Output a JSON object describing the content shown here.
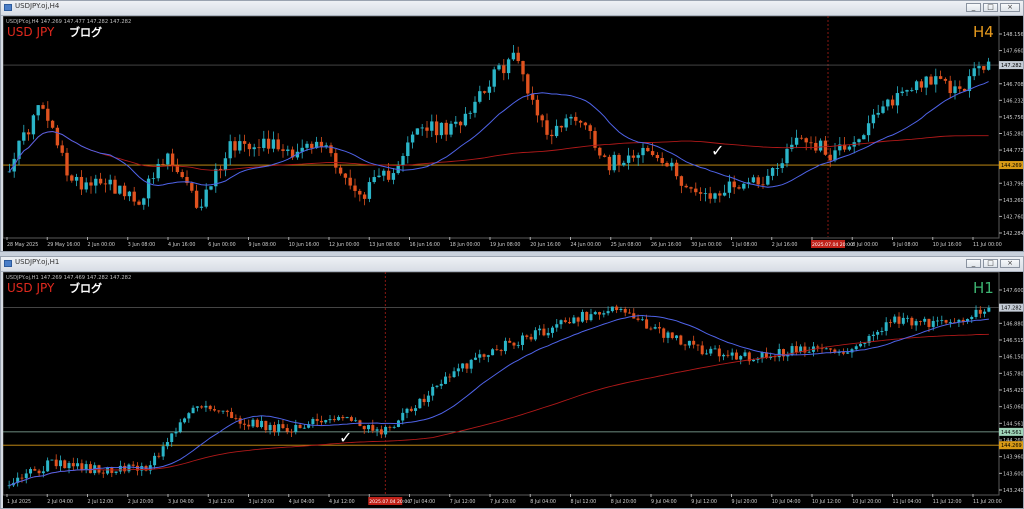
{
  "windows": [
    {
      "id": "h4",
      "title": "USDJPY.oj,H4",
      "info": "USDJPY.oj,H4  147.269 147.477 147.282 147.282",
      "brand_main": "USD JPY",
      "brand_sub": "ブログ",
      "tf": "H4",
      "tf_color": "#e69a1e",
      "price_labels": [
        "148.156",
        "147.660",
        "147.282",
        "146.708",
        "146.232",
        "145.756",
        "145.280",
        "144.772",
        "144.269",
        "143.796",
        "143.260",
        "142.760",
        "142.284"
      ],
      "current_price": "147.282",
      "hline_price": "144.269",
      "time_labels": [
        "28 May 2025",
        "29 May 16:00",
        "2 Jun 00:00",
        "3 Jun 08:00",
        "4 Jun 16:00",
        "6 Jun 00:00",
        "9 Jun 08:00",
        "10 Jun 16:00",
        "12 Jun 00:00",
        "13 Jun 08:00",
        "16 Jun 16:00",
        "18 Jun 00:00",
        "19 Jun 08:00",
        "20 Jun 16:00",
        "24 Jun 00:00",
        "25 Jun 08:00",
        "26 Jun 16:00",
        "30 Jun 00:00",
        "1 Jul 08:00",
        "2 Jul 16:00",
        "2025.07.04 20:00",
        "8 Jul 00:00",
        "9 Jul 08:00",
        "10 Jul 16:00",
        "11 Jul 00:00"
      ],
      "time_highlight": "2025.07.04 20:00",
      "checkmark": "✓"
    },
    {
      "id": "h1",
      "title": "USDJPY.oj,H1",
      "info": "USDJPY.oj,H1  147.269 147.469 147.282 147.282",
      "brand_main": "USD JPY",
      "brand_sub": "ブログ",
      "tf": "H1",
      "tf_color": "#3cb371",
      "price_labels": [
        "147.600",
        "147.282",
        "146.880",
        "146.515",
        "146.150",
        "145.780",
        "145.420",
        "145.060",
        "144.561",
        "144.269",
        "143.960",
        "143.600",
        "143.240"
      ],
      "current_price": "147.282",
      "hline_price": "144.269",
      "hline2_price": "144.561",
      "time_labels": [
        "1 Jul 2025",
        "2 Jul 04:00",
        "2 Jul 12:00",
        "2 Jul 20:00",
        "3 Jul 04:00",
        "3 Jul 12:00",
        "3 Jul 20:00",
        "4 Jul 04:00",
        "4 Jul 12:00",
        "2025.07.04 20:00",
        "7 Jul 04:00",
        "7 Jul 12:00",
        "7 Jul 20:00",
        "8 Jul 04:00",
        "8 Jul 12:00",
        "8 Jul 20:00",
        "9 Jul 04:00",
        "9 Jul 12:00",
        "9 Jul 20:00",
        "10 Jul 04:00",
        "10 Jul 12:00",
        "10 Jul 20:00",
        "11 Jul 04:00",
        "11 Jul 12:00",
        "11 Jul 20:00"
      ],
      "time_highlight": "2025.07.04 20:00",
      "checkmark": "✓"
    }
  ],
  "colors": {
    "bull": "#2bb5c8",
    "bear": "#e0521f",
    "ma_fast": "#4f63e8",
    "ma_slow": "#b01919",
    "hline": "#d89a16",
    "brand_red": "#e0291e"
  }
}
